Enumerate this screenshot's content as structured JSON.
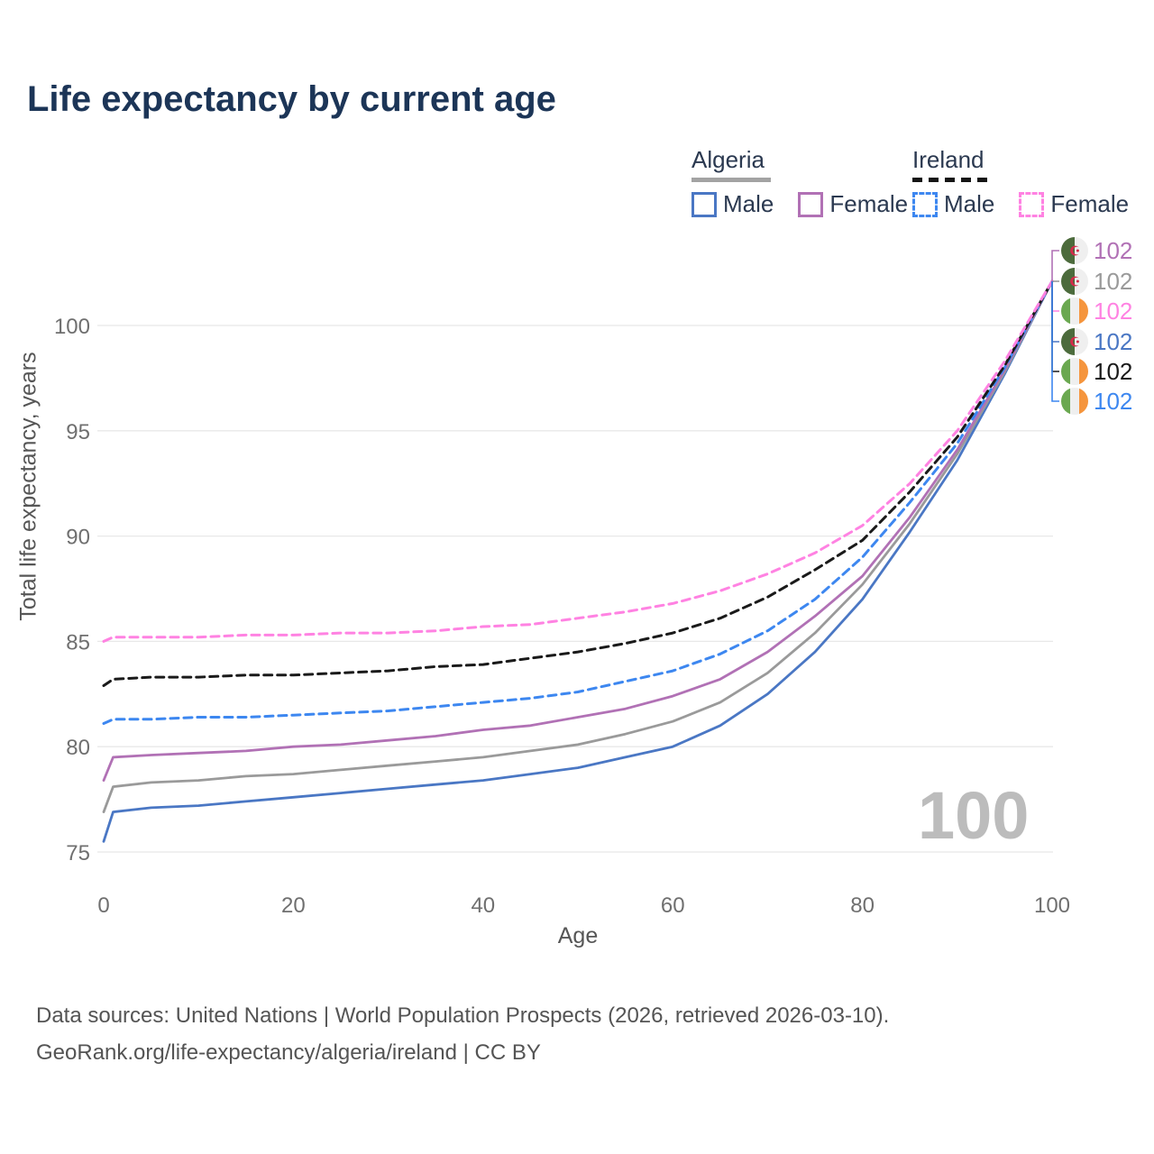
{
  "title": "Life expectancy by current age",
  "watermark": "100",
  "legend": {
    "groups": [
      {
        "name": "Algeria",
        "line_style": "solid",
        "underline_color": "#a3a3a3",
        "items": [
          {
            "label": "Male",
            "color": "#4a77c4"
          },
          {
            "label": "Female",
            "color": "#b171b5"
          }
        ]
      },
      {
        "name": "Ireland",
        "line_style": "dashed",
        "underline_color": "#151515",
        "items": [
          {
            "label": "Male",
            "color": "#3d87f0"
          },
          {
            "label": "Female",
            "color": "#ff82e2"
          }
        ]
      }
    ]
  },
  "chart_data": {
    "type": "line",
    "title": "Life expectancy by current age",
    "xlabel": "Age",
    "ylabel": "Total life expectancy, years",
    "xlim": [
      0,
      100
    ],
    "ylim": [
      75,
      103
    ],
    "xticks": [
      0,
      20,
      40,
      60,
      80,
      100
    ],
    "yticks": [
      75,
      80,
      85,
      90,
      95,
      100
    ],
    "grid": "horizontal",
    "legend_position": "top-right",
    "x": [
      0,
      1,
      5,
      10,
      15,
      20,
      25,
      30,
      35,
      40,
      45,
      50,
      55,
      60,
      65,
      70,
      75,
      80,
      85,
      90,
      95,
      100
    ],
    "series": [
      {
        "name": "Algeria Male",
        "country": "Algeria",
        "sex": "Male",
        "dash": "solid",
        "color": "#4a77c4",
        "values": [
          75.5,
          76.9,
          77.1,
          77.2,
          77.4,
          77.6,
          77.8,
          78.0,
          78.2,
          78.4,
          78.7,
          79.0,
          79.5,
          80.0,
          81.0,
          82.5,
          84.5,
          87.0,
          90.2,
          93.6,
          97.7,
          102.1
        ]
      },
      {
        "name": "Algeria Both sexes",
        "country": "Algeria",
        "sex": "Both",
        "dash": "solid",
        "color": "#9a9a9a",
        "values": [
          76.9,
          78.1,
          78.3,
          78.4,
          78.6,
          78.7,
          78.9,
          79.1,
          79.3,
          79.5,
          79.8,
          80.1,
          80.6,
          81.2,
          82.1,
          83.5,
          85.4,
          87.7,
          90.6,
          93.9,
          97.8,
          102.1
        ]
      },
      {
        "name": "Algeria Female",
        "country": "Algeria",
        "sex": "Female",
        "dash": "solid",
        "color": "#b171b5",
        "values": [
          78.4,
          79.5,
          79.6,
          79.7,
          79.8,
          80.0,
          80.1,
          80.3,
          80.5,
          80.8,
          81.0,
          81.4,
          81.8,
          82.4,
          83.2,
          84.5,
          86.2,
          88.1,
          90.9,
          94.1,
          97.9,
          102.1
        ]
      },
      {
        "name": "Ireland Male",
        "country": "Ireland",
        "sex": "Male",
        "dash": "dashed",
        "color": "#3d87f0",
        "values": [
          81.1,
          81.3,
          81.3,
          81.4,
          81.4,
          81.5,
          81.6,
          81.7,
          81.9,
          82.1,
          82.3,
          82.6,
          83.1,
          83.6,
          84.4,
          85.5,
          87.0,
          89.0,
          91.6,
          94.4,
          98.0,
          102.1
        ]
      },
      {
        "name": "Ireland Both sexes",
        "country": "Ireland",
        "sex": "Both",
        "dash": "dashed",
        "color": "#1a1a1a",
        "values": [
          82.9,
          83.2,
          83.3,
          83.3,
          83.4,
          83.4,
          83.5,
          83.6,
          83.8,
          83.9,
          84.2,
          84.5,
          84.9,
          85.4,
          86.1,
          87.1,
          88.4,
          89.8,
          92.1,
          94.7,
          98.1,
          102.1
        ]
      },
      {
        "name": "Ireland Female",
        "country": "Ireland",
        "sex": "Female",
        "dash": "dashed",
        "color": "#ff82e2",
        "values": [
          85.0,
          85.2,
          85.2,
          85.2,
          85.3,
          85.3,
          85.4,
          85.4,
          85.5,
          85.7,
          85.8,
          86.1,
          86.4,
          86.8,
          87.4,
          88.2,
          89.2,
          90.5,
          92.5,
          95.0,
          98.3,
          102.1
        ]
      }
    ],
    "end_labels": [
      {
        "value": "102",
        "series": "Algeria Female",
        "flag": "algeria",
        "color": "#b171b5"
      },
      {
        "value": "102",
        "series": "Algeria Both sexes",
        "flag": "algeria",
        "color": "#9a9a9a"
      },
      {
        "value": "102",
        "series": "Ireland Female",
        "flag": "ireland",
        "color": "#ff82e2"
      },
      {
        "value": "102",
        "series": "Algeria Male",
        "flag": "algeria",
        "color": "#4a77c4"
      },
      {
        "value": "102",
        "series": "Ireland Both sexes",
        "flag": "ireland",
        "color": "#1a1a1a"
      },
      {
        "value": "102",
        "series": "Ireland Male",
        "flag": "ireland",
        "color": "#3d87f0"
      }
    ]
  },
  "footer": {
    "line1": "Data sources: United Nations | World Population Prospects (2026, retrieved 2026-03-10).",
    "line2": "GeoRank.org/life-expectancy/algeria/ireland | CC BY"
  }
}
